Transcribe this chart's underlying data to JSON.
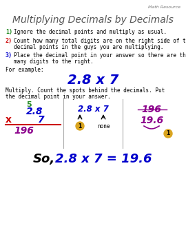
{
  "bg_color": "#ffffff",
  "top_label": "Math Resource",
  "title": "Multiplying Decimals by Decimals",
  "title_color": "#555555",
  "step1_num": "1)",
  "step1_text": "Ignore the decimal points and multiply as usual.",
  "step1_num_color": "#228B22",
  "step2_num": "2)",
  "step2_text_line1": "Count how many total digits are on the right side of the",
  "step2_text_line2": "decimal points in the guys you are multiplying.",
  "step2_num_color": "#cc0000",
  "step3_num": "3)",
  "step3_text_line1": "Place the decimal point in your answer so there are this",
  "step3_text_line2": "many digits to the right.",
  "step3_num_color": "#0000cc",
  "for_example": "For example:",
  "example_expr": "2.8 x 7",
  "example_color": "#0000cc",
  "multiply_line1": "Multiply. Count the spots behind the decimals. Put",
  "multiply_line2": "the decimal point in your answer.",
  "carry_5": "5",
  "carry_color": "#228B22",
  "mult_28": "2.8",
  "mult_7": "7",
  "mult_color": "#0000cc",
  "mult_x": "x",
  "mult_x_color": "#cc0000",
  "mult_result": "196",
  "mult_result_color": "#8B008B",
  "line_color": "#cc0000",
  "mid_expr": "2.8 x 7",
  "mid_color": "#0000cc",
  "circle_color": "#DAA520",
  "circle1_label": "1",
  "none_text": "none",
  "right_196": "196",
  "right_color": "#8B008B",
  "right_result": "19.6",
  "circle2_label": "1",
  "final_so": "So,",
  "final_so_color": "#000000",
  "final_expr": "2.8 x 7 = 19.6",
  "final_expr_color": "#0000cc",
  "text_color": "#000000"
}
